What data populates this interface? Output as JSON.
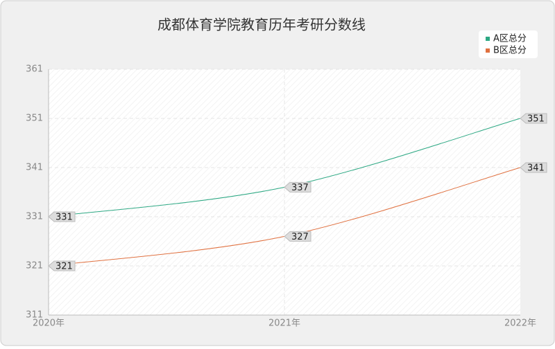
{
  "chart_data": {
    "type": "line",
    "title": "成都体育学院教育历年考研分数线",
    "categories": [
      "2020年",
      "2021年",
      "2022年"
    ],
    "series": [
      {
        "name": "A区总分",
        "color": "#2ca883",
        "values": [
          331,
          337,
          351
        ]
      },
      {
        "name": "B区总分",
        "color": "#e0703f",
        "values": [
          321,
          327,
          341
        ]
      }
    ],
    "ylim": [
      311,
      361
    ],
    "yticks": [
      311,
      321,
      331,
      341,
      351,
      361
    ],
    "grid": true,
    "legend": "top-right"
  }
}
